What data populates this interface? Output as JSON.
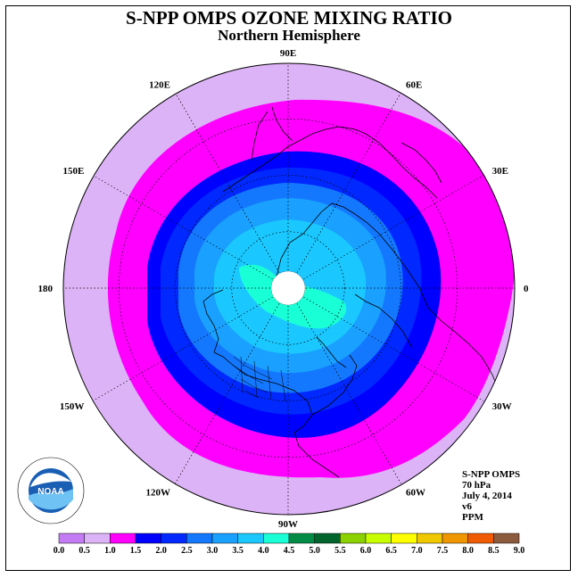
{
  "title": "S-NPP OMPS OZONE MIXING RATIO",
  "subtitle": "Northern Hemisphere",
  "info": {
    "instrument": "S-NPP OMPS",
    "pressure": "70 hPa",
    "date": "July 4, 2014",
    "version": "v6",
    "units": "PPM"
  },
  "logo": {
    "text": "NOAA",
    "icon": "noaa-logo-icon"
  },
  "longitude_labels": [
    "90E",
    "60E",
    "30E",
    "0",
    "30W",
    "60W",
    "90W",
    "120W",
    "150W",
    "180",
    "150E",
    "120E"
  ],
  "colorbar": {
    "ticks": [
      "0.0",
      "0.5",
      "1.0",
      "1.5",
      "2.0",
      "2.5",
      "3.0",
      "3.5",
      "4.0",
      "4.5",
      "5.0",
      "5.5",
      "6.0",
      "6.5",
      "7.0",
      "7.5",
      "8.0",
      "8.5",
      "9.0"
    ],
    "colors": [
      "#c47cf4",
      "#dcb3f6",
      "#ff00ff",
      "#0000ff",
      "#0028ff",
      "#1478ff",
      "#1aa0ff",
      "#1ac8ff",
      "#19ffd6",
      "#008c46",
      "#00642d",
      "#8cd200",
      "#c8ff00",
      "#ffff00",
      "#f0c800",
      "#f09600",
      "#f05a00",
      "#f00000",
      "#8c5a3c"
    ]
  },
  "map_colors": {
    "outer": "#dcb3f6",
    "band_1": "#ff00ff",
    "band_2": "#0000ff",
    "band_3": "#0028ff",
    "band_4": "#1478ff",
    "band_5": "#1aa0ff",
    "band_6": "#1ac8ff",
    "band_7": "#19ffd6",
    "pole": "#ffffff"
  }
}
